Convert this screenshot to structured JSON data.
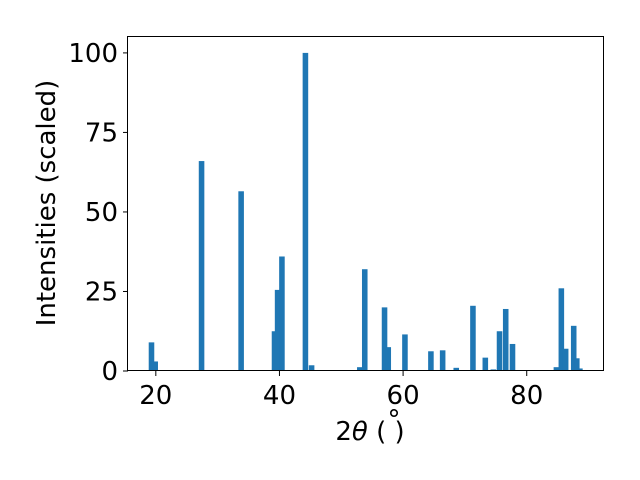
{
  "chart_data": {
    "type": "bar",
    "xlabel": "2θ (°)",
    "xlabel_parts": {
      "prefix": "2",
      "theta": "θ",
      "suffix": " ( )",
      "degree": "°"
    },
    "ylabel": "Intensities (scaled)",
    "xlim": [
      15.5,
      92.5
    ],
    "ylim": [
      0,
      105
    ],
    "xticks": [
      20,
      40,
      60,
      80
    ],
    "yticks": [
      0,
      25,
      50,
      75,
      100
    ],
    "bar_color": "#1f77b4",
    "bar_width": 0.9,
    "legend": "none",
    "grid": false,
    "bars": [
      {
        "x": 19.3,
        "y": 9
      },
      {
        "x": 19.9,
        "y": 3
      },
      {
        "x": 27.4,
        "y": 66
      },
      {
        "x": 33.8,
        "y": 56.5
      },
      {
        "x": 39.2,
        "y": 12.5
      },
      {
        "x": 39.7,
        "y": 25.5
      },
      {
        "x": 40.4,
        "y": 36
      },
      {
        "x": 44.2,
        "y": 100
      },
      {
        "x": 45.2,
        "y": 1.8
      },
      {
        "x": 53.0,
        "y": 1.2
      },
      {
        "x": 53.8,
        "y": 32
      },
      {
        "x": 57.0,
        "y": 20
      },
      {
        "x": 57.6,
        "y": 7.5
      },
      {
        "x": 60.3,
        "y": 11.5
      },
      {
        "x": 64.5,
        "y": 6.2
      },
      {
        "x": 66.4,
        "y": 6.5
      },
      {
        "x": 68.6,
        "y": 1
      },
      {
        "x": 71.3,
        "y": 20.5
      },
      {
        "x": 73.3,
        "y": 4.2
      },
      {
        "x": 74.6,
        "y": 0.5
      },
      {
        "x": 75.6,
        "y": 12.5
      },
      {
        "x": 76.6,
        "y": 19.5
      },
      {
        "x": 77.7,
        "y": 8.5
      },
      {
        "x": 84.8,
        "y": 1.2
      },
      {
        "x": 85.6,
        "y": 26
      },
      {
        "x": 86.3,
        "y": 7
      },
      {
        "x": 87.6,
        "y": 14.2
      },
      {
        "x": 88.1,
        "y": 4
      },
      {
        "x": 88.6,
        "y": 0.8
      }
    ]
  }
}
